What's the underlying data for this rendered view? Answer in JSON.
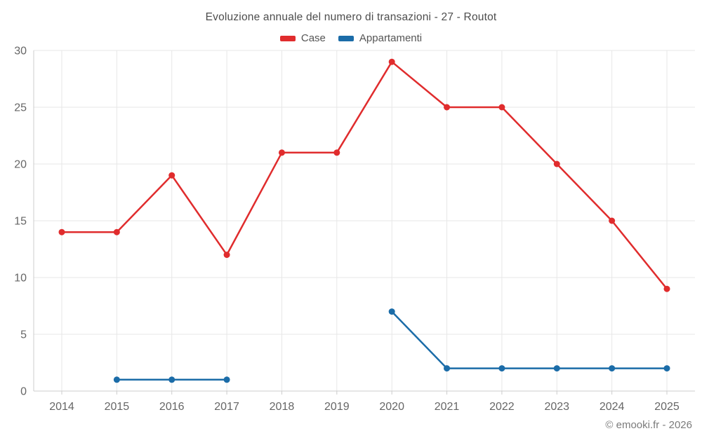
{
  "chart_data": {
    "type": "line",
    "title": "Evoluzione annuale del numero di transazioni - 27 - Routot",
    "categories": [
      "2014",
      "2015",
      "2016",
      "2017",
      "2018",
      "2019",
      "2020",
      "2021",
      "2022",
      "2023",
      "2024",
      "2025"
    ],
    "series": [
      {
        "name": "Case",
        "color": "#e02c2d",
        "values": [
          14,
          14,
          19,
          12,
          21,
          21,
          29,
          25,
          25,
          20,
          15,
          9
        ]
      },
      {
        "name": "Appartamenti",
        "color": "#1b6ca8",
        "values": [
          null,
          1,
          1,
          1,
          null,
          null,
          7,
          2,
          2,
          2,
          2,
          2
        ]
      }
    ],
    "xlabel": "",
    "ylabel": "",
    "ylim": [
      0,
      30
    ],
    "yticks": [
      0,
      5,
      10,
      15,
      20,
      25,
      30
    ],
    "grid": true,
    "legend_position": "top"
  },
  "footer": {
    "copyright": "© emooki.fr - 2026"
  },
  "colors": {
    "grid": "#e7e7e7",
    "axis": "#cccccc",
    "tick_label": "#666666",
    "title": "#4d4d4d",
    "background": "#ffffff"
  }
}
